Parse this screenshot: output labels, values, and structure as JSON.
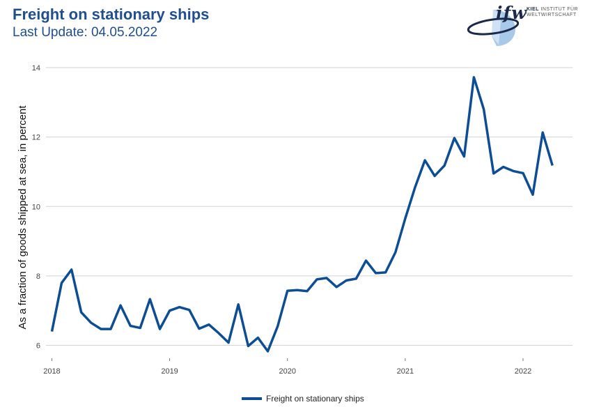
{
  "header": {
    "title": "Freight on stationary ships",
    "subtitle": "Last Update: 04.05.2022"
  },
  "logo": {
    "word": "ifw",
    "line1_bold": "KIEL",
    "line1_rest": " INSTITUT FÜR",
    "line2": "WELTWIRTSCHAFT"
  },
  "colors": {
    "series": "#0d4d96",
    "grid": "#d3d3d3",
    "title": "#1f4e91"
  },
  "chart_data": {
    "type": "line",
    "title": "Freight on stationary ships",
    "subtitle": "Last Update: 04.05.2022",
    "xlabel": "",
    "ylabel": "As a fraction of goods shipped at sea, in percent",
    "xlim": [
      2017.95,
      2022.42
    ],
    "ylim": [
      5.75,
      14.2
    ],
    "x_ticks": [
      2018,
      2019,
      2020,
      2021,
      2022
    ],
    "x_tick_labels": [
      "2018",
      "2019",
      "2020",
      "2021",
      "2022"
    ],
    "y_ticks": [
      6,
      8,
      10,
      12,
      14
    ],
    "y_tick_labels": [
      "6",
      "8",
      "10",
      "12",
      "14"
    ],
    "grid": "horizontal",
    "legend": "bottom",
    "series": [
      {
        "name": "Freight on stationary ships",
        "x": [
          2018.0,
          2018.083,
          2018.167,
          2018.25,
          2018.333,
          2018.417,
          2018.5,
          2018.583,
          2018.667,
          2018.75,
          2018.833,
          2018.917,
          2019.0,
          2019.083,
          2019.167,
          2019.25,
          2019.333,
          2019.417,
          2019.5,
          2019.583,
          2019.667,
          2019.75,
          2019.833,
          2019.917,
          2020.0,
          2020.083,
          2020.167,
          2020.25,
          2020.333,
          2020.417,
          2020.5,
          2020.583,
          2020.667,
          2020.75,
          2020.833,
          2020.917,
          2021.0,
          2021.083,
          2021.167,
          2021.25,
          2021.333,
          2021.417,
          2021.5,
          2021.583,
          2021.667,
          2021.75,
          2021.833,
          2021.917,
          2022.0,
          2022.083,
          2022.167,
          2022.25
        ],
        "values": [
          6.4,
          7.8,
          8.18,
          6.95,
          6.65,
          6.47,
          6.47,
          7.15,
          6.56,
          6.5,
          7.33,
          6.47,
          7.0,
          7.1,
          7.02,
          6.48,
          6.6,
          6.35,
          6.08,
          7.18,
          5.98,
          6.22,
          5.83,
          6.55,
          7.57,
          7.59,
          7.56,
          7.9,
          7.94,
          7.68,
          7.87,
          7.92,
          8.44,
          8.08,
          8.1,
          8.68,
          9.65,
          10.55,
          11.33,
          10.88,
          11.18,
          11.97,
          11.44,
          13.72,
          12.8,
          10.95,
          11.14,
          11.02,
          10.96,
          10.34,
          12.13,
          11.18
        ]
      }
    ]
  }
}
